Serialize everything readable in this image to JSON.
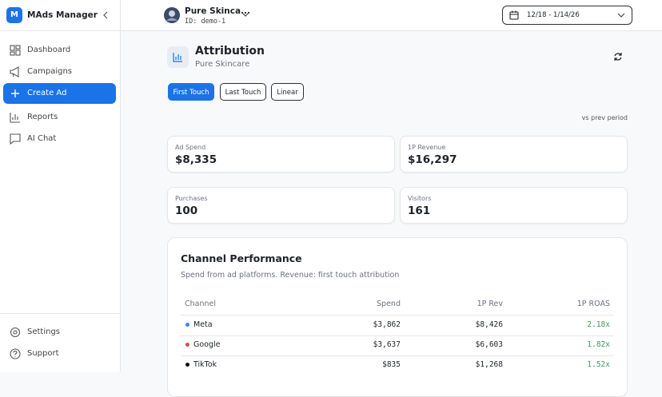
{
  "sidebar": {
    "logo_letter": "M",
    "app_name": "MAds Manager",
    "nav": [
      "Dashboard",
      "Campaigns",
      "Create Ad",
      "Reports",
      "AI Chat"
    ],
    "footer": [
      "Settings",
      "Support"
    ]
  },
  "header": {
    "account_name": "Pure Skinca...",
    "account_id": "ID: demo-1",
    "date_range": "12/18 - 1/14/26"
  },
  "page": {
    "title": "Attribution",
    "subtitle": "Pure Skincare",
    "models": [
      "First Touch",
      "Last Touch",
      "Linear"
    ],
    "comparison": "vs prev period"
  },
  "metrics": [
    {
      "label": "Ad Spend",
      "value": "$8,335"
    },
    {
      "label": "1P Revenue",
      "value": "$16,297"
    },
    {
      "label": "Purchases",
      "value": "100"
    },
    {
      "label": "Visitors",
      "value": "161"
    }
  ],
  "table": {
    "title": "Channel Performance",
    "description": "Spend from ad platforms. Revenue: first touch attribution",
    "columns": [
      "Channel",
      "Spend",
      "1P Rev",
      "1P ROAS"
    ],
    "rows": [
      {
        "color": "#3b82f6",
        "cells": [
          "Meta",
          "$3,862",
          "$8,426",
          "2.18x"
        ]
      },
      {
        "color": "#e5484d",
        "cells": [
          "Google",
          "$3,637",
          "$6,603",
          "1.82x"
        ]
      },
      {
        "color": "#111111",
        "cells": [
          "TikTok",
          "$835",
          "$1,268",
          "1.52x"
        ]
      }
    ]
  }
}
